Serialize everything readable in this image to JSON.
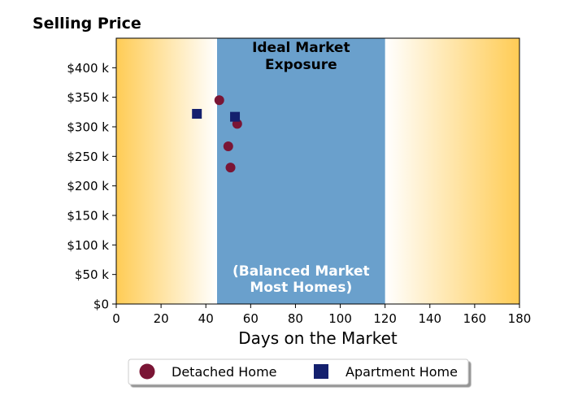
{
  "chart_data": {
    "type": "scatter",
    "title": "Selling Price",
    "xlabel": "Days on the Market",
    "ylabel": "",
    "xlim": [
      0,
      180
    ],
    "ylim": [
      0,
      450000
    ],
    "x_ticks": [
      0,
      20,
      40,
      60,
      80,
      100,
      120,
      140,
      160,
      180
    ],
    "x_tick_labels": [
      "0",
      "20",
      "40",
      "60",
      "80",
      "100",
      "120",
      "140",
      "160",
      "180"
    ],
    "y_ticks": [
      0,
      50000,
      100000,
      150000,
      200000,
      250000,
      300000,
      350000,
      400000
    ],
    "y_tick_labels": [
      "$0",
      "$50 k",
      "$100 k",
      "$150 k",
      "$200 k",
      "$250 k",
      "$300 k",
      "$350 k",
      "$400 k"
    ],
    "grid": false,
    "legend_position": "below",
    "ideal_band": {
      "x_range": [
        45,
        120
      ],
      "color": "#6aa0cc",
      "title_lines": [
        "Ideal Market",
        "Exposure"
      ],
      "subtitle_lines": [
        "(Balanced Market",
        "Most Homes)"
      ]
    },
    "gradient_color": "#ffcc55",
    "series": [
      {
        "name": "Detached Home",
        "marker": "circle",
        "color": "#7a1535",
        "points": [
          {
            "x": 46,
            "y": 345000
          },
          {
            "x": 54,
            "y": 305000
          },
          {
            "x": 50,
            "y": 267000
          },
          {
            "x": 51,
            "y": 231000
          }
        ]
      },
      {
        "name": "Apartment Home",
        "marker": "square",
        "color": "#14206e",
        "points": [
          {
            "x": 36,
            "y": 322000
          },
          {
            "x": 53,
            "y": 317000
          }
        ]
      }
    ]
  }
}
